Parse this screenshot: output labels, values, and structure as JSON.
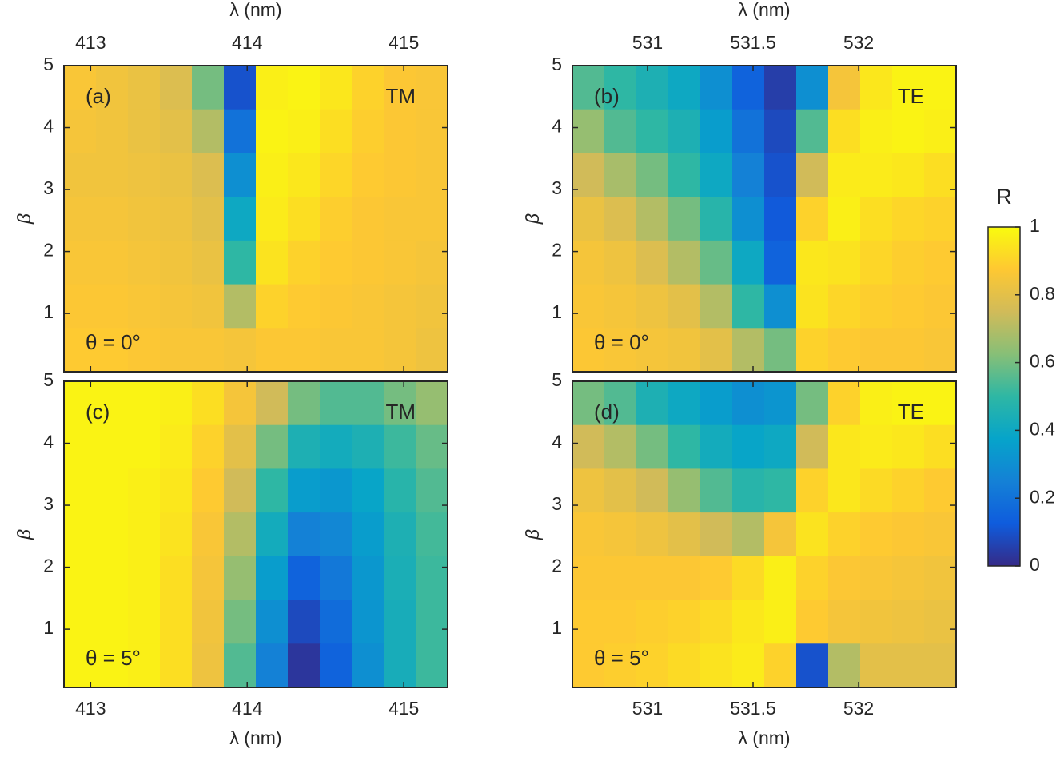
{
  "chart_data": [
    {
      "type": "heatmap",
      "label": "(a)",
      "mode": "TM",
      "annotation": "θ = 0°",
      "xlabel": "λ (nm)",
      "ylabel": "β",
      "x_axis_position": "top",
      "xlim": [
        412.83,
        415.28
      ],
      "xticks": [
        413,
        414,
        415
      ],
      "ylim": [
        0.06,
        5
      ],
      "yticks": [
        1,
        2,
        3,
        4,
        5
      ],
      "z": [
        [
          0.86,
          0.84,
          0.82,
          0.78,
          0.6,
          0.1,
          0.97,
          0.98,
          0.95,
          0.9,
          0.87,
          0.86
        ],
        [
          0.85,
          0.84,
          0.82,
          0.8,
          0.7,
          0.2,
          0.98,
          0.97,
          0.93,
          0.89,
          0.87,
          0.86
        ],
        [
          0.84,
          0.84,
          0.83,
          0.82,
          0.78,
          0.3,
          0.97,
          0.95,
          0.91,
          0.88,
          0.87,
          0.86
        ],
        [
          0.85,
          0.85,
          0.84,
          0.83,
          0.8,
          0.4,
          0.96,
          0.93,
          0.89,
          0.87,
          0.86,
          0.86
        ],
        [
          0.86,
          0.86,
          0.85,
          0.84,
          0.82,
          0.5,
          0.94,
          0.9,
          0.88,
          0.87,
          0.86,
          0.85
        ],
        [
          0.87,
          0.87,
          0.86,
          0.85,
          0.84,
          0.7,
          0.9,
          0.88,
          0.87,
          0.86,
          0.85,
          0.84
        ],
        [
          0.88,
          0.88,
          0.87,
          0.86,
          0.86,
          0.85,
          0.87,
          0.87,
          0.86,
          0.86,
          0.85,
          0.83
        ]
      ]
    },
    {
      "type": "heatmap",
      "label": "(b)",
      "mode": "TE",
      "annotation": "θ = 0°",
      "xlabel": "λ (nm)",
      "ylabel": "β",
      "x_axis_position": "top",
      "xlim": [
        530.644,
        532.462
      ],
      "xticks": [
        531,
        531.5,
        532
      ],
      "ylim": [
        0.06,
        5
      ],
      "yticks": [
        1,
        2,
        3,
        4,
        5
      ],
      "z": [
        [
          0.55,
          0.5,
          0.45,
          0.4,
          0.3,
          0.15,
          0.05,
          0.3,
          0.85,
          0.95,
          0.98,
          0.98
        ],
        [
          0.65,
          0.55,
          0.5,
          0.45,
          0.35,
          0.2,
          0.08,
          0.55,
          0.93,
          0.97,
          0.98,
          0.97
        ],
        [
          0.75,
          0.68,
          0.6,
          0.5,
          0.4,
          0.25,
          0.1,
          0.75,
          0.96,
          0.96,
          0.95,
          0.93
        ],
        [
          0.82,
          0.78,
          0.7,
          0.6,
          0.48,
          0.3,
          0.12,
          0.9,
          0.97,
          0.93,
          0.91,
          0.9
        ],
        [
          0.85,
          0.83,
          0.78,
          0.7,
          0.58,
          0.4,
          0.15,
          0.95,
          0.94,
          0.91,
          0.89,
          0.88
        ],
        [
          0.86,
          0.85,
          0.83,
          0.8,
          0.7,
          0.5,
          0.3,
          0.94,
          0.91,
          0.89,
          0.88,
          0.87
        ],
        [
          0.87,
          0.86,
          0.85,
          0.84,
          0.8,
          0.7,
          0.6,
          0.9,
          0.88,
          0.87,
          0.87,
          0.86
        ]
      ]
    },
    {
      "type": "heatmap",
      "label": "(c)",
      "mode": "TM",
      "annotation": "θ = 5°",
      "xlabel": "λ (nm)",
      "ylabel": "β",
      "x_axis_position": "bottom",
      "xlim": [
        412.83,
        415.28
      ],
      "xticks": [
        413,
        414,
        415
      ],
      "ylim": [
        0.06,
        5
      ],
      "yticks": [
        1,
        2,
        3,
        4,
        5
      ],
      "z": [
        [
          0.98,
          0.98,
          0.98,
          0.97,
          0.93,
          0.85,
          0.75,
          0.6,
          0.55,
          0.55,
          0.6,
          0.65
        ],
        [
          0.98,
          0.98,
          0.98,
          0.96,
          0.9,
          0.8,
          0.6,
          0.45,
          0.42,
          0.45,
          0.52,
          0.58
        ],
        [
          0.98,
          0.98,
          0.97,
          0.95,
          0.88,
          0.75,
          0.5,
          0.35,
          0.33,
          0.38,
          0.48,
          0.55
        ],
        [
          0.98,
          0.98,
          0.97,
          0.94,
          0.86,
          0.7,
          0.42,
          0.25,
          0.27,
          0.35,
          0.45,
          0.53
        ],
        [
          0.98,
          0.98,
          0.97,
          0.93,
          0.85,
          0.65,
          0.35,
          0.15,
          0.22,
          0.33,
          0.44,
          0.52
        ],
        [
          0.98,
          0.98,
          0.97,
          0.93,
          0.84,
          0.6,
          0.3,
          0.08,
          0.18,
          0.32,
          0.43,
          0.52
        ],
        [
          0.98,
          0.98,
          0.97,
          0.93,
          0.83,
          0.55,
          0.25,
          0.03,
          0.15,
          0.3,
          0.43,
          0.52
        ]
      ]
    },
    {
      "type": "heatmap",
      "label": "(d)",
      "mode": "TE",
      "annotation": "θ = 5°",
      "xlabel": "λ (nm)",
      "ylabel": "β",
      "x_axis_position": "bottom",
      "xlim": [
        530.644,
        532.462
      ],
      "xticks": [
        531,
        531.5,
        532
      ],
      "ylim": [
        0.06,
        5
      ],
      "yticks": [
        1,
        2,
        3,
        4,
        5
      ],
      "z": [
        [
          0.6,
          0.55,
          0.45,
          0.4,
          0.35,
          0.3,
          0.32,
          0.6,
          0.9,
          0.97,
          0.98,
          0.98
        ],
        [
          0.75,
          0.7,
          0.6,
          0.5,
          0.42,
          0.38,
          0.4,
          0.75,
          0.95,
          0.96,
          0.95,
          0.93
        ],
        [
          0.83,
          0.8,
          0.75,
          0.65,
          0.55,
          0.48,
          0.5,
          0.9,
          0.95,
          0.92,
          0.9,
          0.88
        ],
        [
          0.86,
          0.85,
          0.83,
          0.8,
          0.75,
          0.7,
          0.85,
          0.94,
          0.9,
          0.88,
          0.87,
          0.86
        ],
        [
          0.87,
          0.87,
          0.87,
          0.87,
          0.88,
          0.92,
          0.97,
          0.9,
          0.87,
          0.86,
          0.85,
          0.84
        ],
        [
          0.88,
          0.88,
          0.89,
          0.9,
          0.92,
          0.95,
          0.97,
          0.88,
          0.85,
          0.84,
          0.83,
          0.82
        ],
        [
          0.88,
          0.89,
          0.9,
          0.92,
          0.94,
          0.96,
          0.9,
          0.1,
          0.7,
          0.8,
          0.8,
          0.8
        ]
      ]
    }
  ],
  "colorbar": {
    "title": "R",
    "zlim": [
      0,
      1
    ],
    "ticks": [
      0,
      0.2,
      0.4,
      0.6,
      0.8,
      1
    ],
    "colormap": [
      "#352a87",
      "#0f5cdd",
      "#1481d6",
      "#06a4ca",
      "#2eb7a4",
      "#87bf77",
      "#d1bb59",
      "#fec832",
      "#f9fb0e"
    ]
  }
}
